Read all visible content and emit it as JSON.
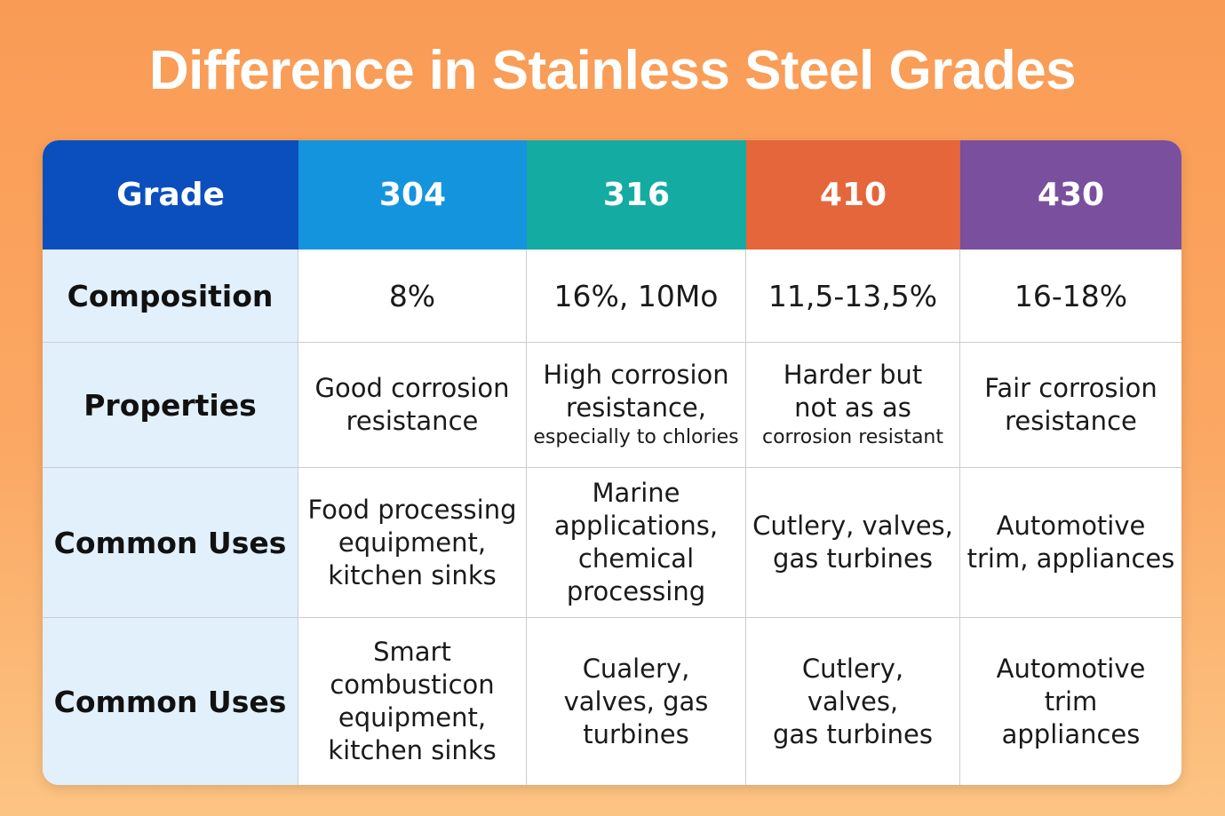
{
  "title": "Difference in Stainless Steel Grades",
  "table": {
    "header": [
      "Grade",
      "304",
      "316",
      "410",
      "430"
    ],
    "rows": [
      {
        "label": "Composition",
        "cells": [
          [
            "8%"
          ],
          [
            "16%, 10Mo"
          ],
          [
            "11,5-13,5%"
          ],
          [
            "16-18%"
          ]
        ]
      },
      {
        "label": "Properties",
        "cells": [
          [
            "Good corrosion",
            "resistance"
          ],
          [
            "High corrosion",
            "resistance,",
            "especially to chlories"
          ],
          [
            "Harder but",
            "not as as",
            "corrosion resistant"
          ],
          [
            "Fair corrosion",
            "resistance"
          ]
        ]
      },
      {
        "label": "Common Uses",
        "cells": [
          [
            "Food processing",
            "equipment,",
            "kitchen sinks"
          ],
          [
            "Marine",
            "applications,",
            "chemical",
            "processing"
          ],
          [
            "Cutlery, valves,",
            "gas turbines"
          ],
          [
            "Automotive",
            "trim, appliances"
          ]
        ]
      },
      {
        "label": "Common Uses",
        "cells": [
          [
            "Smart",
            "combusticon",
            "equipment,",
            "kitchen sinks"
          ],
          [
            "Cualery,",
            "valves, gas",
            "turbines"
          ],
          [
            "Cutlery,",
            "valves,",
            "gas turbines"
          ],
          [
            "Automotive",
            "trim",
            "appliances"
          ]
        ]
      }
    ]
  }
}
